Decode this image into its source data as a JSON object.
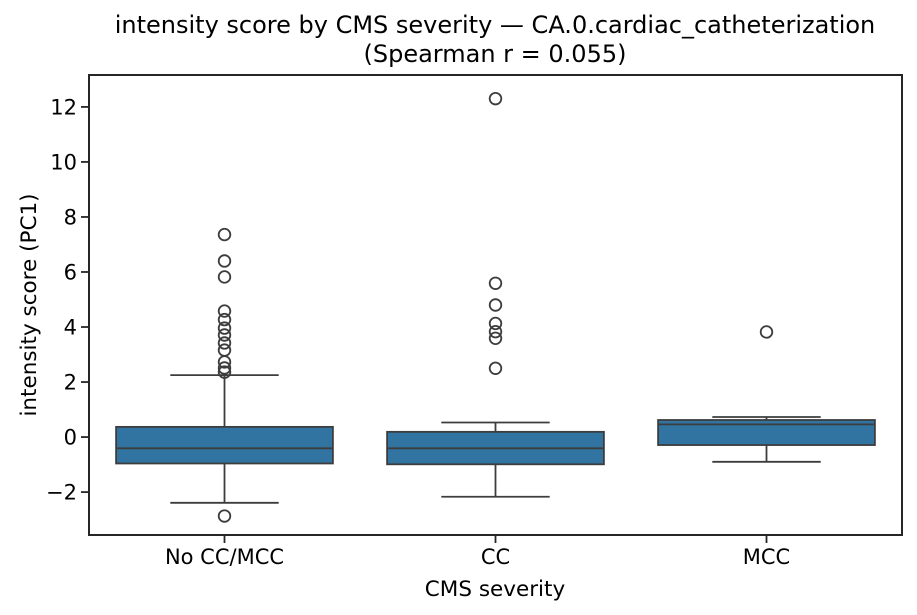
{
  "chart_data": {
    "type": "box",
    "title": "intensity score by CMS severity — CA.0.cardiac_catheterization (Spearman r = 0.055)",
    "title_line1": "intensity score by CMS severity — CA.0.cardiac_catheterization",
    "title_line2": "(Spearman r = 0.055)",
    "xlabel": "CMS severity",
    "ylabel": "intensity score (PC1)",
    "categories": [
      "No CC/MCC",
      "CC",
      "MCC"
    ],
    "yticks": [
      -2,
      0,
      2,
      4,
      6,
      8,
      10,
      12
    ],
    "ylim": [
      -3.56,
      13.16
    ],
    "grid": false,
    "legend": null,
    "series": [
      {
        "category": "No CC/MCC",
        "whisker_low": -2.39,
        "q1": -0.96,
        "median": -0.41,
        "q3": 0.37,
        "whisker_high": 2.25,
        "outliers": [
          7.36,
          6.4,
          5.82,
          4.58,
          4.27,
          3.96,
          3.71,
          3.42,
          3.16,
          2.73,
          2.51,
          2.36,
          -2.87
        ]
      },
      {
        "category": "CC",
        "whisker_low": -2.17,
        "q1": -0.99,
        "median": -0.41,
        "q3": 0.19,
        "whisker_high": 0.53,
        "outliers": [
          12.3,
          5.59,
          4.8,
          4.13,
          3.83,
          3.59,
          2.5
        ]
      },
      {
        "category": "MCC",
        "whisker_low": -0.9,
        "q1": -0.29,
        "median": 0.46,
        "q3": 0.62,
        "whisker_high": 0.73,
        "outliers": [
          3.82
        ]
      }
    ],
    "style": {
      "box_fill": "#3274A1",
      "box_line": "#3D3D3D",
      "spine_color": "#262626",
      "text_color": "#000000",
      "background": "#FFFFFF"
    }
  }
}
